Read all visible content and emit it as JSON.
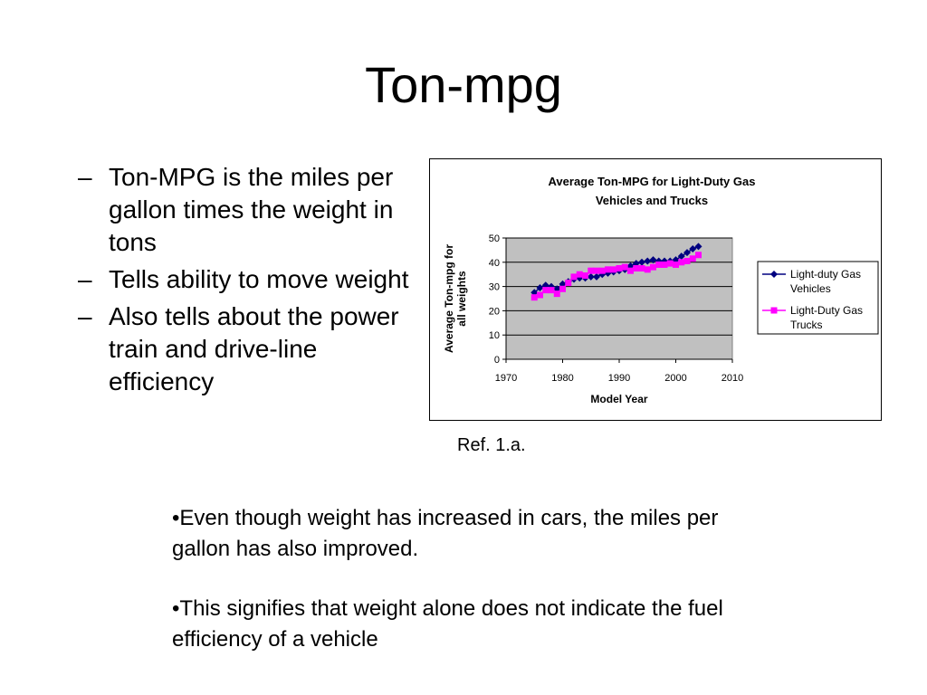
{
  "slide": {
    "title": "Ton-mpg",
    "bullets": [
      {
        "marker": "–",
        "text": "Ton-MPG is the miles per gallon times the weight in tons"
      },
      {
        "marker": "–",
        "text": "Tells ability to move weight"
      },
      {
        "marker": "–",
        "text": "Also tells about the power train and drive-line efficiency"
      }
    ],
    "reference": "Ref. 1.a.",
    "notes": [
      "•Even though weight has increased in cars, the miles per gallon has also improved.",
      "•This signifies that weight alone does not indicate the fuel efficiency of a vehicle"
    ]
  },
  "chart_data": {
    "type": "line",
    "title_lines": [
      "Average Ton-MPG for Light-Duty Gas",
      "Vehicles and Trucks"
    ],
    "xlabel": "Model Year",
    "ylabel_lines": [
      "Average Ton-mpg for",
      "all weights"
    ],
    "xlim": [
      1970,
      2010
    ],
    "ylim": [
      0,
      50
    ],
    "xticks": [
      1970,
      1980,
      1990,
      2000,
      2010
    ],
    "yticks": [
      0,
      10,
      20,
      30,
      40,
      50
    ],
    "grid": "horizontal",
    "plot_background": "#c0c0c0",
    "legend_position": "right",
    "series": [
      {
        "name": "Light-duty Gas Vehicles",
        "legend_lines": [
          "Light-duty Gas",
          "Vehicles"
        ],
        "color": "#000080",
        "marker": "diamond",
        "x": [
          1975,
          1976,
          1977,
          1978,
          1979,
          1980,
          1981,
          1982,
          1983,
          1984,
          1985,
          1986,
          1987,
          1988,
          1989,
          1990,
          1991,
          1992,
          1993,
          1994,
          1995,
          1996,
          1997,
          1998,
          1999,
          2000,
          2001,
          2002,
          2003,
          2004
        ],
        "values": [
          27.5,
          29.5,
          30.5,
          30,
          29,
          31,
          32,
          33,
          33.5,
          33.5,
          34,
          34,
          35,
          35.5,
          36,
          36.5,
          37,
          38.5,
          39.5,
          40,
          40.5,
          41,
          40.5,
          40.5,
          40.5,
          41,
          42.5,
          44,
          45.5,
          46.5
        ]
      },
      {
        "name": "Light-Duty Gas Trucks",
        "legend_lines": [
          "Light-Duty Gas",
          "Trucks"
        ],
        "color": "#ff00ff",
        "marker": "square",
        "x": [
          1975,
          1976,
          1977,
          1978,
          1979,
          1980,
          1981,
          1982,
          1983,
          1984,
          1985,
          1986,
          1987,
          1988,
          1989,
          1990,
          1991,
          1992,
          1993,
          1994,
          1995,
          1996,
          1997,
          1998,
          1999,
          2000,
          2001,
          2002,
          2003,
          2004
        ],
        "values": [
          25.5,
          26.5,
          28.5,
          28.5,
          27,
          29,
          31.5,
          34,
          35,
          34.5,
          36.5,
          36.5,
          36.5,
          37,
          37,
          37.5,
          38,
          36.5,
          37.5,
          37.5,
          37,
          38,
          39,
          39,
          39.5,
          39,
          40,
          40.5,
          41.5,
          43
        ]
      }
    ]
  }
}
